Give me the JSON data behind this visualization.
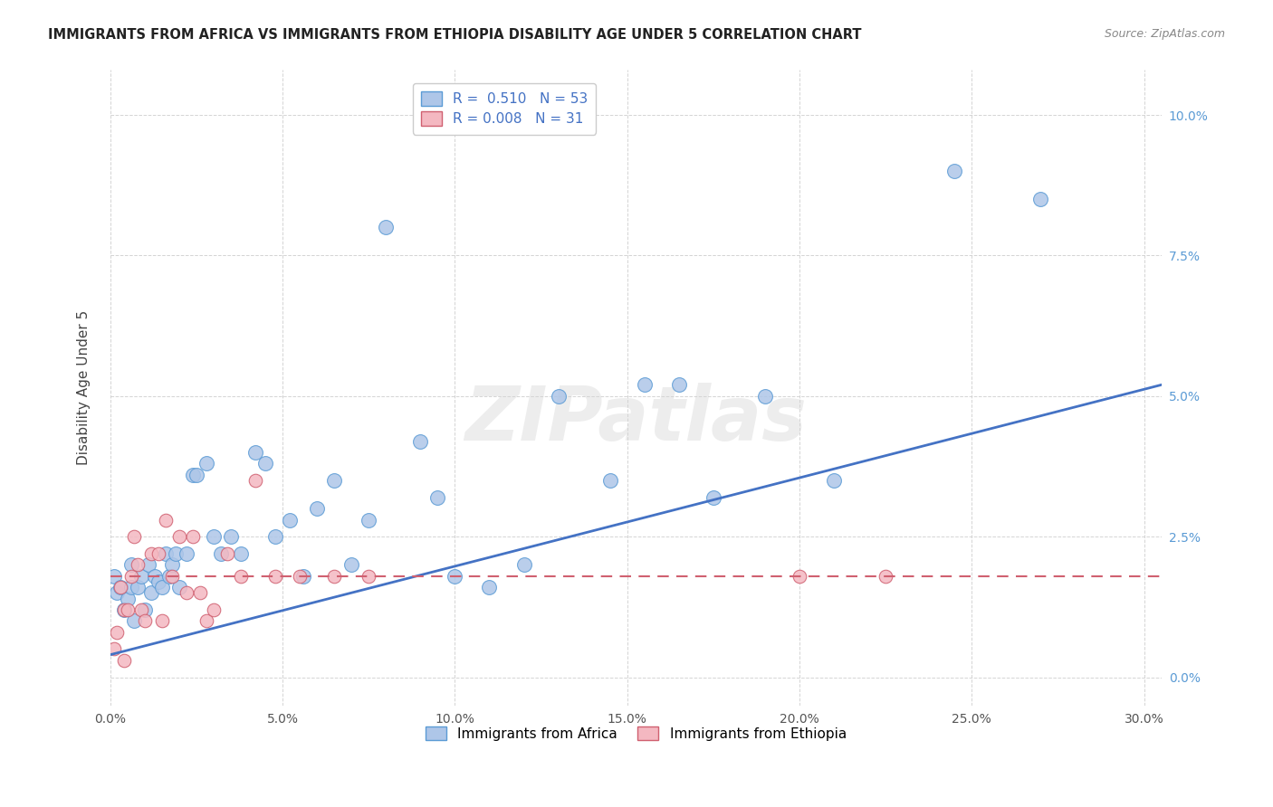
{
  "title": "IMMIGRANTS FROM AFRICA VS IMMIGRANTS FROM ETHIOPIA DISABILITY AGE UNDER 5 CORRELATION CHART",
  "source": "Source: ZipAtlas.com",
  "ylabel": "Disability Age Under 5",
  "xlim": [
    0.0,
    0.305
  ],
  "ylim": [
    -0.005,
    0.108
  ],
  "xtick_values": [
    0.0,
    0.05,
    0.1,
    0.15,
    0.2,
    0.25,
    0.3
  ],
  "xtick_labels": [
    "0.0%",
    "5.0%",
    "10.0%",
    "15.0%",
    "20.0%",
    "25.0%",
    "30.0%"
  ],
  "ytick_values": [
    0.0,
    0.025,
    0.05,
    0.075,
    0.1
  ],
  "ytick_labels": [
    "0.0%",
    "2.5%",
    "5.0%",
    "7.5%",
    "10.0%"
  ],
  "africa_color": "#aec6e8",
  "africa_edge_color": "#5b9bd5",
  "ethiopia_color": "#f4b8c1",
  "ethiopia_edge_color": "#d06070",
  "africa_line_color": "#4472c4",
  "ethiopia_line_color": "#d06070",
  "legend_label_africa": "Immigrants from Africa",
  "legend_label_ethiopia": "Immigrants from Ethiopia",
  "R_africa": "0.510",
  "N_africa": "53",
  "R_ethiopia": "0.008",
  "N_ethiopia": "31",
  "watermark": "ZIPatlas",
  "africa_x": [
    0.001,
    0.002,
    0.003,
    0.004,
    0.005,
    0.006,
    0.006,
    0.007,
    0.008,
    0.009,
    0.01,
    0.011,
    0.012,
    0.013,
    0.014,
    0.015,
    0.016,
    0.017,
    0.018,
    0.019,
    0.02,
    0.022,
    0.024,
    0.025,
    0.028,
    0.03,
    0.032,
    0.035,
    0.038,
    0.042,
    0.045,
    0.048,
    0.052,
    0.056,
    0.06,
    0.065,
    0.07,
    0.075,
    0.08,
    0.09,
    0.095,
    0.1,
    0.11,
    0.12,
    0.13,
    0.145,
    0.155,
    0.165,
    0.175,
    0.19,
    0.21,
    0.245,
    0.27
  ],
  "africa_y": [
    0.018,
    0.015,
    0.016,
    0.012,
    0.014,
    0.02,
    0.016,
    0.01,
    0.016,
    0.018,
    0.012,
    0.02,
    0.015,
    0.018,
    0.017,
    0.016,
    0.022,
    0.018,
    0.02,
    0.022,
    0.016,
    0.022,
    0.036,
    0.036,
    0.038,
    0.025,
    0.022,
    0.025,
    0.022,
    0.04,
    0.038,
    0.025,
    0.028,
    0.018,
    0.03,
    0.035,
    0.02,
    0.028,
    0.08,
    0.042,
    0.032,
    0.018,
    0.016,
    0.02,
    0.05,
    0.035,
    0.052,
    0.052,
    0.032,
    0.05,
    0.035,
    0.09,
    0.085
  ],
  "ethiopia_x": [
    0.001,
    0.002,
    0.003,
    0.004,
    0.004,
    0.005,
    0.006,
    0.007,
    0.008,
    0.009,
    0.01,
    0.012,
    0.014,
    0.015,
    0.016,
    0.018,
    0.02,
    0.022,
    0.024,
    0.026,
    0.028,
    0.03,
    0.034,
    0.038,
    0.042,
    0.048,
    0.055,
    0.065,
    0.075,
    0.2,
    0.225
  ],
  "ethiopia_y": [
    0.005,
    0.008,
    0.016,
    0.003,
    0.012,
    0.012,
    0.018,
    0.025,
    0.02,
    0.012,
    0.01,
    0.022,
    0.022,
    0.01,
    0.028,
    0.018,
    0.025,
    0.015,
    0.025,
    0.015,
    0.01,
    0.012,
    0.022,
    0.018,
    0.035,
    0.018,
    0.018,
    0.018,
    0.018,
    0.018,
    0.018
  ],
  "africa_trend_x0": 0.0,
  "africa_trend_x1": 0.305,
  "africa_trend_y0": 0.004,
  "africa_trend_y1": 0.052,
  "ethiopia_trend_y": 0.018,
  "background_color": "#ffffff",
  "grid_color": "#d0d0d0",
  "tick_color": "#5b9bd5",
  "title_fontsize": 10.5,
  "source_fontsize": 9
}
